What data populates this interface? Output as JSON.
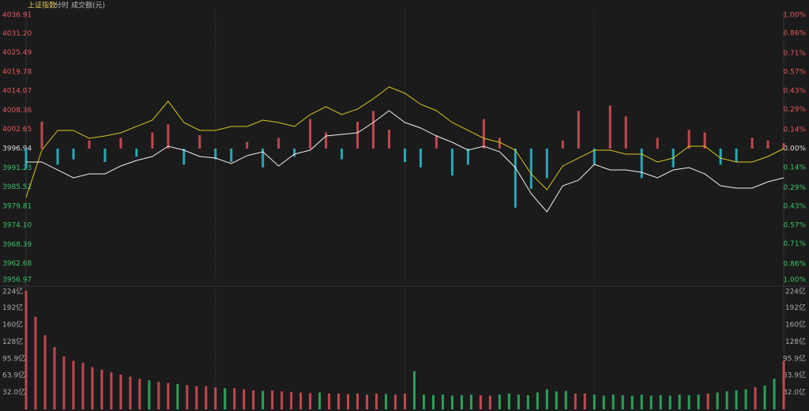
{
  "header": {
    "title": "上证指数",
    "tabs": [
      "分时",
      "成交额(元)"
    ]
  },
  "chart_data": [
    {
      "type": "line",
      "xlim": [
        0,
        240
      ],
      "ylim": [
        3956.97,
        4036.91
      ],
      "yticks": [
        4036.91,
        {
          "value": 4031.2,
          "label": "4031.20"
        },
        4025.49,
        4019.78,
        4014.07,
        4008.36,
        4002.65,
        3996.94,
        3991.23,
        3985.52,
        3979.81,
        {
          "value": 3974.1,
          "label": "3974.10"
        },
        3968.39,
        3962.68,
        3956.97
      ],
      "y2lim": [
        -1,
        1
      ],
      "y2ticks": [
        {
          "value": 1,
          "label": "1.00%"
        },
        {
          "value": 0.86,
          "label": "0.86%"
        },
        {
          "value": 0.71,
          "label": "0.71%"
        },
        {
          "value": 0.57,
          "label": "0.57%"
        },
        {
          "value": 0.43,
          "label": "0.43%"
        },
        {
          "value": 0.29,
          "label": "0.29%"
        },
        {
          "value": 0.14,
          "label": "0.14%"
        },
        {
          "value": 0,
          "label": "0.00%"
        },
        {
          "value": -0.14,
          "label": "0.14%"
        },
        {
          "value": -0.29,
          "label": "0.29%"
        },
        {
          "value": -0.43,
          "label": "0.43%"
        },
        {
          "value": -0.57,
          "label": "0.57%"
        },
        {
          "value": -0.71,
          "label": "0.71%"
        },
        {
          "value": -0.86,
          "label": "0.86%"
        },
        {
          "value": -1,
          "label": "1.00%"
        }
      ],
      "series": [
        {
          "type": "bar",
          "axis": "y2",
          "up_color": "#c0484e",
          "down_color": "#2aa6b4",
          "x": [
            0,
            5,
            10,
            15,
            20,
            25,
            30,
            35,
            40,
            45,
            50,
            55,
            60,
            65,
            70,
            75,
            80,
            85,
            90,
            95,
            100,
            105,
            110,
            115,
            120,
            125,
            130,
            135,
            140,
            145,
            150,
            155,
            160,
            165,
            170,
            175,
            180,
            185,
            190,
            195,
            200,
            205,
            210,
            215,
            220,
            225,
            230,
            235,
            240
          ],
          "values": [
            -0.15,
            0.2,
            -0.12,
            -0.08,
            0.06,
            -0.1,
            0.08,
            -0.06,
            0.12,
            0.18,
            -0.12,
            0.1,
            -0.08,
            -0.1,
            0.05,
            -0.14,
            0.08,
            -0.06,
            0.22,
            0.12,
            -0.08,
            0.2,
            0.28,
            0.14,
            -0.1,
            -0.14,
            0.1,
            -0.2,
            -0.12,
            0.22,
            0.08,
            -0.44,
            -0.3,
            -0.22,
            0.06,
            0.28,
            -0.12,
            0.32,
            0.24,
            -0.22,
            0.08,
            -0.14,
            0.14,
            0.12,
            -0.12,
            -0.1,
            0.08,
            0.06,
            0.04
          ]
        },
        {
          "type": "line",
          "color": "#d8c61e",
          "x": [
            0,
            5,
            10,
            15,
            20,
            25,
            30,
            35,
            40,
            45,
            50,
            55,
            60,
            65,
            70,
            75,
            80,
            85,
            90,
            95,
            100,
            105,
            110,
            115,
            120,
            125,
            130,
            135,
            140,
            145,
            150,
            155,
            160,
            165,
            170,
            175,
            180,
            185,
            190,
            195,
            200,
            205,
            210,
            215,
            220,
            225,
            230,
            235,
            240
          ],
          "values": [
            3982.37,
            3996.47,
            4002.35,
            4002.35,
            4000.0,
            4000.7,
            4001.64,
            4003.53,
            4005.41,
            4011.05,
            4004.7,
            4002.35,
            4002.35,
            4003.53,
            4003.53,
            4005.41,
            4004.7,
            4003.53,
            4007.05,
            4009.4,
            4007.05,
            4008.7,
            4011.75,
            4015.28,
            4013.4,
            4010.11,
            4008.23,
            4004.7,
            4002.35,
            4000.0,
            3998.82,
            3996.47,
            3989.42,
            3984.72,
            3991.77,
            3994.12,
            3996.47,
            3996.47,
            3995.3,
            3995.3,
            3992.95,
            3994.12,
            3997.65,
            3997.65,
            3994.12,
            3992.95,
            3992.95,
            3994.59,
            3996.94
          ]
        },
        {
          "type": "line",
          "color": "#f0f0f0",
          "x": [
            0,
            5,
            10,
            15,
            20,
            25,
            30,
            35,
            40,
            45,
            50,
            55,
            60,
            65,
            70,
            75,
            80,
            85,
            90,
            95,
            100,
            105,
            110,
            115,
            120,
            125,
            130,
            135,
            140,
            145,
            150,
            155,
            160,
            165,
            170,
            175,
            180,
            185,
            190,
            195,
            200,
            205,
            210,
            215,
            220,
            225,
            230,
            235,
            240
          ],
          "values": [
            3992.95,
            3992.95,
            3990.59,
            3988.24,
            3989.42,
            3989.42,
            3991.77,
            3993.42,
            3994.59,
            3997.65,
            3996.47,
            3994.59,
            3994.12,
            3992.48,
            3994.83,
            3996.0,
            3991.77,
            3995.3,
            3996.47,
            4000.7,
            4001.17,
            4001.64,
            4004.7,
            4008.23,
            4004.7,
            4003.06,
            4000.7,
            3998.82,
            3996.47,
            3997.65,
            3996.0,
            3991.3,
            3983.54,
            3978.13,
            3985.89,
            3987.54,
            3992.24,
            3990.59,
            3990.59,
            3989.89,
            3988.24,
            3990.59,
            3991.3,
            3989.42,
            3985.89,
            3985.19,
            3985.19,
            3987.07,
            3988.24
          ]
        }
      ]
    },
    {
      "type": "bar",
      "xlim": [
        0,
        240
      ],
      "ylim": [
        0,
        224
      ],
      "yticks": [
        {
          "value": 224,
          "label": "224亿"
        },
        {
          "value": 192,
          "label": "192亿"
        },
        {
          "value": 160,
          "label": "160亿"
        },
        {
          "value": 128,
          "label": "128亿"
        },
        {
          "value": 95.9,
          "label": "95.9亿"
        },
        {
          "value": 63.9,
          "label": "63.9亿"
        },
        {
          "value": 32,
          "label": "32.0亿"
        }
      ],
      "series": [
        {
          "color": "#c0484e",
          "x": [
            0,
            3,
            6,
            9,
            12,
            15,
            18,
            21,
            24,
            27,
            30,
            33,
            36,
            42,
            45,
            51,
            54,
            57,
            60,
            66,
            69,
            72,
            78,
            81,
            84,
            87,
            90,
            96,
            99,
            102,
            105,
            108,
            111,
            117,
            120,
            144,
            147,
            174,
            177,
            216,
            231,
            240
          ],
          "values": [
            224,
            175,
            140,
            118,
            100,
            92,
            88,
            80,
            75,
            70,
            66,
            62,
            58,
            52,
            50,
            46,
            44,
            44,
            42,
            40,
            38,
            36,
            36,
            34,
            33,
            32,
            31,
            30,
            30,
            29,
            30,
            28,
            30,
            28,
            30,
            27,
            26,
            30,
            30,
            30,
            42,
            92
          ]
        },
        {
          "color": "#2ca05a",
          "x": [
            39,
            48,
            63,
            75,
            93,
            114,
            123,
            126,
            129,
            132,
            135,
            138,
            141,
            150,
            153,
            156,
            159,
            162,
            165,
            168,
            171,
            180,
            183,
            186,
            189,
            192,
            195,
            198,
            201,
            204,
            207,
            210,
            213,
            219,
            222,
            225,
            228,
            234,
            237
          ],
          "values": [
            55,
            48,
            40,
            35,
            32,
            29,
            72,
            28,
            27,
            28,
            26,
            27,
            28,
            28,
            30,
            28,
            27,
            32,
            38,
            34,
            35,
            28,
            26,
            28,
            27,
            26,
            28,
            26,
            27,
            26,
            28,
            27,
            28,
            32,
            34,
            36,
            38,
            45,
            58
          ]
        }
      ]
    }
  ]
}
